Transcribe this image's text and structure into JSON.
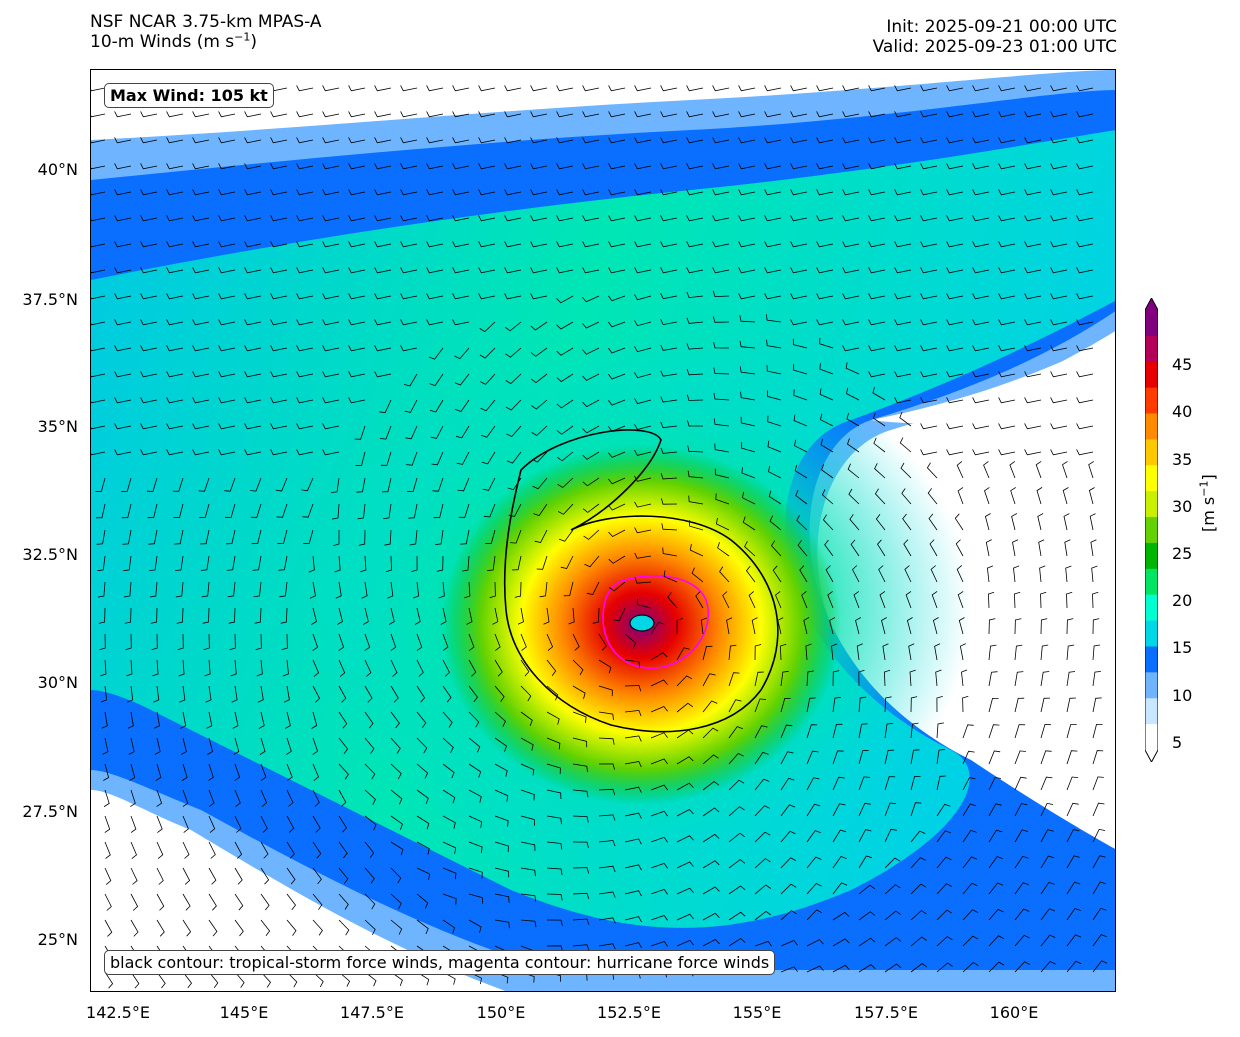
{
  "header": {
    "model": "NSF NCAR 3.75-km MPAS-A",
    "field_prefix": "10-m Winds (m s",
    "field_sup": "−1",
    "field_suffix": ")",
    "init": "Init: 2025-09-21 00:00 UTC",
    "valid": "Valid: 2025-09-23 01:00 UTC"
  },
  "map": {
    "lat_ticks": [
      "40°N",
      "37.5°N",
      "35°N",
      "32.5°N",
      "30°N",
      "27.5°N",
      "25°N"
    ],
    "lon_ticks": [
      "142.5°E",
      "145°E",
      "147.5°E",
      "150°E",
      "152.5°E",
      "155°E",
      "157.5°E",
      "160°E"
    ],
    "max_wind": "Max Wind: 105 kt",
    "legend_text": "black contour: tropical-storm force winds, magenta contour: hurricane force winds",
    "contour_colors": {
      "tropical_storm": "#000000",
      "hurricane": "#ff00ff"
    },
    "storm_center": {
      "lon": 152.7,
      "lat": 31.1
    }
  },
  "colorbar": {
    "labels": [
      "45",
      "40",
      "35",
      "30",
      "25",
      "20",
      "15",
      "10",
      "5"
    ],
    "unit_prefix": "[m s",
    "unit_sup": "−1",
    "unit_suffix": "]",
    "colors": [
      "#ffffff",
      "#c8e6ff",
      "#6eb4ff",
      "#0a6fff",
      "#00d7e6",
      "#00ffd0",
      "#00e664",
      "#00b400",
      "#64d200",
      "#c8f000",
      "#ffff00",
      "#ffc800",
      "#ff8c00",
      "#ff3c00",
      "#e60000",
      "#b4005a",
      "#800080"
    ]
  }
}
